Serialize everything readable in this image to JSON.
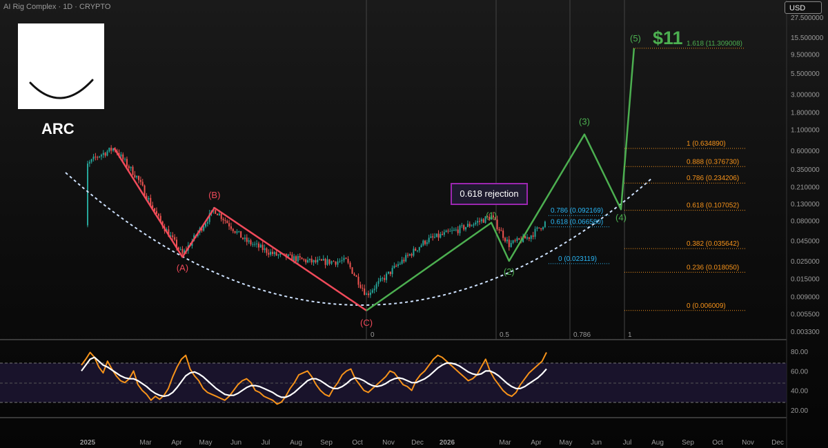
{
  "header": {
    "title": "AI Rig Complex · 1D · CRYPTO",
    "currency_button": "USD"
  },
  "ticker": "ARC",
  "target_price_label": "$11",
  "callout_text": "0.618 rejection",
  "colors": {
    "price_up": "#26a69a",
    "price_down": "#ef5350",
    "abc_wave": "#f04a5a",
    "impulse_wave": "#4caf50",
    "fib_extension": "#f7931a",
    "fib_retrace": "#29b6f6",
    "curve": "#cfe3ff",
    "rsi": "#f7931a",
    "rsi_ma": "#ffffff",
    "callout_border": "#9c27b0"
  },
  "chart_data": [
    {
      "type": "line",
      "description_source": "price panel",
      "y_scale": "log",
      "y_ticks": [
        "27.500000",
        "15.500000",
        "9.500000",
        "5.500000",
        "3.000000",
        "1.800000",
        "1.100000",
        "0.600000",
        "0.350000",
        "0.210000",
        "0.130000",
        "0.080000",
        "0.045000",
        "0.025000",
        "0.015000",
        "0.009000",
        "0.005500",
        "0.003300"
      ],
      "x_ticks": [
        "2025",
        "Mar",
        "Apr",
        "May",
        "Jun",
        "Jul",
        "Aug",
        "Sep",
        "Oct",
        "Nov",
        "Dec",
        "2026",
        "Mar",
        "Apr",
        "May",
        "Jun",
        "Jul",
        "Aug",
        "Sep",
        "Oct",
        "Nov",
        "Dec"
      ],
      "time_fib_labels": [
        "0",
        "0.5",
        "0.786",
        "1"
      ],
      "abc_wave": {
        "labels": [
          "(A)",
          "(B)",
          "(C)"
        ],
        "points": [
          {
            "x": "2025-01-28",
            "y": 0.64
          },
          {
            "x": "2025-04-07",
            "y": 0.028
          },
          {
            "x": "2025-05-10",
            "y": 0.115
          },
          {
            "x": "2025-10-10",
            "y": 0.006
          }
        ]
      },
      "impulse_wave": {
        "labels": [
          "(1)",
          "(2)",
          "(3)",
          "(4)",
          "(5)"
        ],
        "points": [
          {
            "x": "2025-10-10",
            "y": 0.006
          },
          {
            "x": "2026-02-15",
            "y": 0.075
          },
          {
            "x": "2026-03-05",
            "y": 0.025
          },
          {
            "x": "2026-05-20",
            "y": 0.95
          },
          {
            "x": "2026-06-25",
            "y": 0.11
          },
          {
            "x": "2026-07-08",
            "y": 11.3
          }
        ]
      },
      "fib_extension_levels": [
        {
          "label": "1.618 (11.309008)",
          "value": 11.309008
        },
        {
          "label": "1 (0.634890)",
          "value": 0.63489
        },
        {
          "label": "0.888 (0.376730)",
          "value": 0.37673
        },
        {
          "label": "0.786 (0.234206)",
          "value": 0.234206
        },
        {
          "label": "0.618 (0.107052)",
          "value": 0.107052
        },
        {
          "label": "0.382 (0.035642)",
          "value": 0.035642
        },
        {
          "label": "0.236 (0.018050)",
          "value": 0.01805
        },
        {
          "label": "0 (0.006009)",
          "value": 0.006009
        }
      ],
      "fib_retrace_levels": [
        {
          "label": "0.786 (0.092169)",
          "value": 0.092169
        },
        {
          "label": "0.618 (0.066580)",
          "value": 0.06658
        },
        {
          "label": "0 (0.023119)",
          "value": 0.023119
        }
      ]
    },
    {
      "type": "line",
      "description_source": "oscillator panel",
      "y_ticks": [
        "80.00",
        "60.00",
        "40.00",
        "20.00"
      ],
      "ylim": [
        15,
        85
      ],
      "bands": [
        70,
        50,
        30
      ],
      "series": [
        {
          "values": [
            66,
            72,
            79,
            74,
            64,
            58,
            70,
            62,
            55,
            50,
            48,
            52,
            60,
            46,
            40,
            36,
            30,
            34,
            31,
            35,
            42,
            54,
            64,
            72,
            76,
            62,
            55,
            50,
            42,
            38,
            36,
            34,
            32,
            30,
            34,
            40,
            46,
            50,
            52,
            48,
            40,
            38,
            34,
            32,
            30,
            26,
            28,
            34,
            42,
            48,
            56,
            58,
            60,
            54,
            46,
            40,
            36,
            34,
            42,
            48,
            56,
            60,
            62,
            52,
            46,
            40,
            38,
            42,
            46,
            50,
            54,
            60,
            58,
            52,
            46,
            44,
            40,
            50,
            56,
            60,
            66,
            72,
            76,
            74,
            70,
            66,
            62,
            58,
            54,
            50,
            52,
            56,
            64,
            72,
            60,
            52,
            46,
            40,
            36,
            34,
            38,
            46,
            52,
            58,
            62,
            66,
            70,
            79
          ]
        },
        {
          "values": [
            60,
            66,
            72,
            74,
            70,
            66,
            64,
            61,
            58,
            55,
            53,
            52,
            52,
            50,
            47,
            44,
            40,
            37,
            35,
            34,
            35,
            38,
            43,
            49,
            55,
            58,
            59,
            57,
            54,
            50,
            46,
            42,
            39,
            36,
            35,
            35,
            37,
            40,
            43,
            45,
            45,
            44,
            42,
            40,
            38,
            35,
            33,
            33,
            35,
            38,
            42,
            46,
            50,
            52,
            52,
            50,
            47,
            44,
            42,
            42,
            44,
            47,
            51,
            53,
            52,
            50,
            47,
            45,
            44,
            45,
            47,
            50,
            52,
            53,
            52,
            50,
            48,
            48,
            50,
            52,
            55,
            59,
            63,
            66,
            68,
            68,
            67,
            65,
            62,
            59,
            57,
            56,
            57,
            60,
            60,
            58,
            55,
            51,
            47,
            44,
            42,
            42,
            44,
            47,
            50,
            53,
            57,
            62
          ]
        }
      ]
    }
  ]
}
